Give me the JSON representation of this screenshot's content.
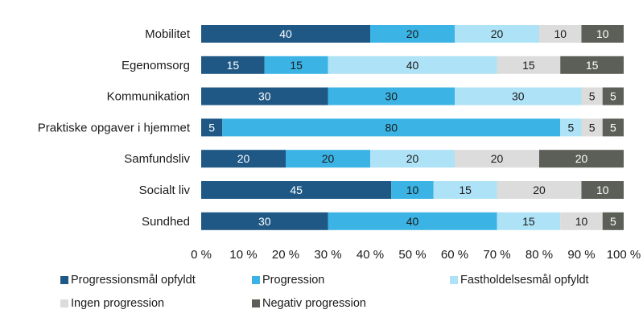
{
  "chart_data": {
    "type": "bar",
    "orientation": "horizontal",
    "stacked": true,
    "categories": [
      "Mobilitet",
      "Egenomsorg",
      "Kommunikation",
      "Praktiske opgaver i hjemmet",
      "Samfundsliv",
      "Socialt liv",
      "Sundhed"
    ],
    "series": [
      {
        "name": "Progressionsmål opfyldt",
        "color": "#1f5885",
        "label_color": "#ffffff",
        "values": [
          40,
          15,
          30,
          5,
          20,
          45,
          30
        ]
      },
      {
        "name": "Progression",
        "color": "#3bb4e5",
        "label_color": "#1a1a1a",
        "values": [
          20,
          15,
          30,
          80,
          20,
          10,
          40
        ]
      },
      {
        "name": "Fastholdelsesmål opfyldt",
        "color": "#aee2f6",
        "label_color": "#1a1a1a",
        "values": [
          20,
          40,
          30,
          5,
          20,
          15,
          15
        ]
      },
      {
        "name": "Ingen progression",
        "color": "#dcdcdc",
        "label_color": "#1a1a1a",
        "values": [
          10,
          15,
          5,
          5,
          20,
          20,
          10
        ]
      },
      {
        "name": "Negativ progression",
        "color": "#5c5f57",
        "label_color": "#ffffff",
        "values": [
          10,
          15,
          5,
          5,
          20,
          10,
          5
        ]
      }
    ],
    "x_ticks": [
      "0 %",
      "10 %",
      "20 %",
      "30 %",
      "40 %",
      "50 %",
      "60 %",
      "70 %",
      "80 %",
      "90 %",
      "100 %"
    ],
    "xlim": [
      0,
      100
    ],
    "grid": false,
    "legend": "bottom"
  }
}
